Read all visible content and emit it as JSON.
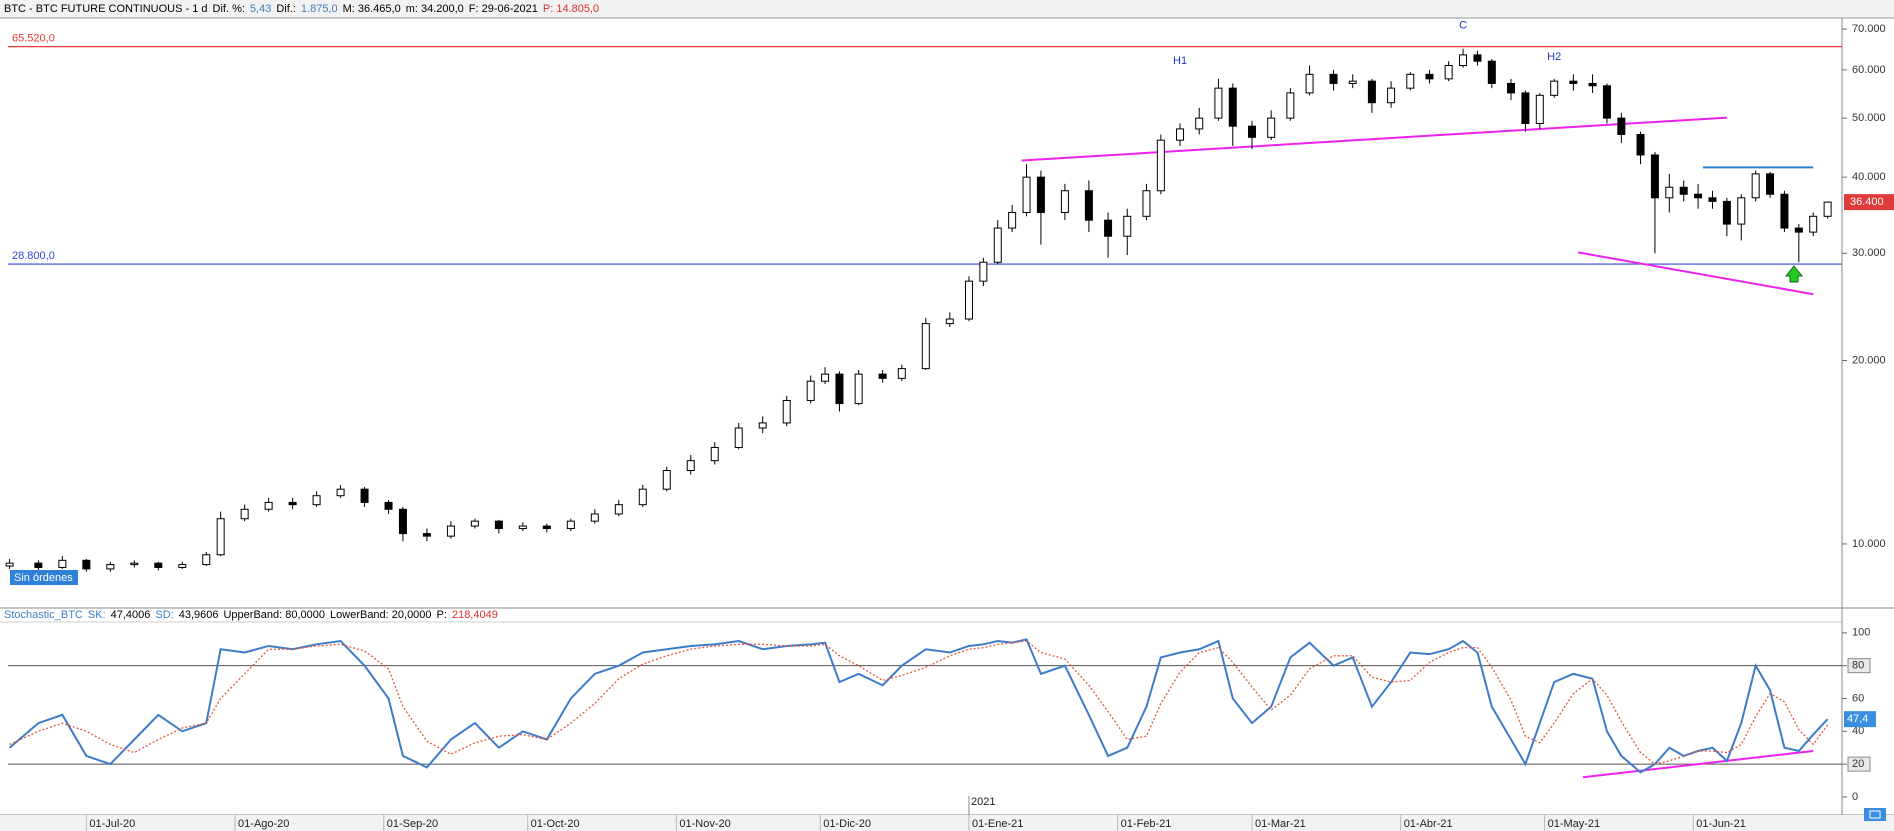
{
  "chart_data": [
    {
      "type": "candlestick",
      "title_parts": [
        {
          "text": "BTC - BTC FUTURE CONTINUOUS - 1 d",
          "color": "#000000"
        },
        {
          "text": "Dif. %:",
          "color": "#000000"
        },
        {
          "text": "5,43",
          "color": "#3a7fc1"
        },
        {
          "text": "Dif.:",
          "color": "#000000"
        },
        {
          "text": "1.875,0",
          "color": "#3a7fc1"
        },
        {
          "text": "M: 36.465,0",
          "color": "#000000"
        },
        {
          "text": "m: 34.200,0",
          "color": "#000000"
        },
        {
          "text": "F: 29-06-2021",
          "color": "#000000"
        },
        {
          "text": "P: 14.805,0",
          "color": "#e03030"
        }
      ],
      "log_scale": true,
      "xlim": [
        -18,
        366
      ],
      "ylim": [
        7850,
        73000
      ],
      "yticks": [
        {
          "value": 10000,
          "label": "10.000"
        },
        {
          "value": 20000,
          "label": "20.000"
        },
        {
          "value": 30000,
          "label": "30.000"
        },
        {
          "value": 40000,
          "label": "40.000"
        },
        {
          "value": 50000,
          "label": "50.000"
        },
        {
          "value": 60000,
          "label": "60.000"
        },
        {
          "value": 70000,
          "label": "70.000"
        }
      ],
      "up_color": "#ffffff",
      "down_color": "#000000",
      "x": [
        -16,
        -10,
        -5,
        0,
        5,
        10,
        15,
        20,
        25,
        28,
        33,
        38,
        43,
        48,
        53,
        58,
        63,
        66,
        71,
        76,
        81,
        86,
        91,
        96,
        101,
        106,
        111,
        116,
        121,
        126,
        131,
        136,
        141,
        146,
        151,
        154,
        157,
        161,
        166,
        170,
        175,
        180,
        184,
        187,
        190,
        193,
        196,
        199,
        204,
        209,
        213,
        217,
        221,
        224,
        228,
        232,
        236,
        239,
        243,
        247,
        251,
        255,
        260,
        264,
        268,
        272,
        276,
        280,
        284,
        287,
        290,
        293,
        297,
        300,
        303,
        306,
        310,
        314,
        317,
        320,
        324,
        327,
        330,
        333,
        336,
        339,
        342,
        345,
        348,
        351,
        354,
        357,
        360,
        363
      ],
      "open": [
        9200,
        9300,
        9150,
        9400,
        9100,
        9250,
        9300,
        9150,
        9250,
        9600,
        11000,
        11400,
        11700,
        11600,
        12000,
        12300,
        11700,
        11400,
        10400,
        10300,
        10700,
        10900,
        10600,
        10700,
        10600,
        10900,
        11200,
        11600,
        12300,
        13200,
        13700,
        14400,
        15500,
        15800,
        17200,
        18500,
        19000,
        17000,
        19000,
        18700,
        19400,
        23000,
        23400,
        27000,
        29000,
        33000,
        35000,
        40000,
        35000,
        38000,
        34000,
        32000,
        34500,
        38000,
        46000,
        48000,
        50000,
        56000,
        48500,
        46500,
        50000,
        55000,
        59000,
        57000,
        57500,
        53000,
        56000,
        59000,
        58000,
        61000,
        63500,
        62000,
        57000,
        55000,
        49000,
        54500,
        57500,
        57000,
        56500,
        50000,
        47000,
        43500,
        37000,
        38500,
        37500,
        37000,
        36500,
        33500,
        37000,
        40500,
        37500,
        33000,
        32500,
        34500
      ],
      "high": [
        9450,
        9400,
        9550,
        9450,
        9350,
        9400,
        9350,
        9350,
        9700,
        11300,
        11600,
        11900,
        11900,
        12200,
        12500,
        12400,
        11800,
        11500,
        10600,
        10900,
        11000,
        10950,
        10850,
        10800,
        11000,
        11400,
        11800,
        12500,
        13400,
        14000,
        14700,
        15800,
        16200,
        17500,
        18900,
        19500,
        19200,
        19300,
        19300,
        19700,
        23500,
        24000,
        27500,
        29500,
        34000,
        36000,
        42000,
        41000,
        39000,
        39500,
        35000,
        35500,
        39000,
        47000,
        49000,
        52000,
        58000,
        57000,
        49500,
        51500,
        56000,
        61000,
        60000,
        59000,
        58000,
        57500,
        59500,
        60000,
        62000,
        65000,
        64500,
        62500,
        58000,
        55500,
        55000,
        58000,
        59000,
        59000,
        57000,
        51000,
        47500,
        44000,
        40500,
        39500,
        39000,
        38000,
        37000,
        37500,
        41000,
        40800,
        38000,
        33500,
        35000,
        36500
      ],
      "low": [
        9100,
        9050,
        9100,
        9000,
        9000,
        9150,
        9050,
        9100,
        9200,
        9550,
        10900,
        11300,
        11400,
        11500,
        11900,
        11500,
        11200,
        10100,
        10100,
        10200,
        10600,
        10400,
        10500,
        10450,
        10500,
        10800,
        11100,
        11500,
        12200,
        13000,
        13500,
        14300,
        15200,
        15600,
        17000,
        18300,
        16500,
        16900,
        18400,
        18500,
        19300,
        22700,
        23200,
        26500,
        28800,
        32500,
        34500,
        31000,
        34000,
        32500,
        29500,
        29800,
        34000,
        37500,
        45000,
        47000,
        49500,
        45000,
        44500,
        46000,
        49500,
        54500,
        55500,
        56000,
        51000,
        52000,
        55500,
        57000,
        57500,
        60500,
        61000,
        56000,
        53500,
        47500,
        48000,
        54000,
        55500,
        55000,
        49000,
        45500,
        42000,
        30000,
        35000,
        36500,
        35500,
        35500,
        32000,
        31500,
        36500,
        37000,
        32500,
        29000,
        32000,
        34200
      ],
      "close": [
        9300,
        9150,
        9400,
        9100,
        9250,
        9300,
        9150,
        9250,
        9600,
        11000,
        11400,
        11700,
        11600,
        12000,
        12300,
        11700,
        11400,
        10400,
        10300,
        10700,
        10900,
        10600,
        10700,
        10600,
        10900,
        11200,
        11600,
        12300,
        13200,
        13700,
        14400,
        15500,
        15800,
        17200,
        18500,
        19000,
        17000,
        19000,
        18700,
        19400,
        23000,
        23400,
        27000,
        29000,
        33000,
        35000,
        40000,
        35000,
        38000,
        34000,
        32000,
        34500,
        38000,
        46000,
        48000,
        50000,
        56000,
        48500,
        46500,
        50000,
        55000,
        59000,
        57000,
        57500,
        53000,
        56000,
        59000,
        58000,
        61000,
        63500,
        62000,
        57000,
        55000,
        49000,
        54500,
        57500,
        57000,
        56500,
        50000,
        47000,
        43500,
        37000,
        38500,
        37500,
        37000,
        36500,
        33500,
        37000,
        40500,
        37500,
        33000,
        32500,
        34500,
        36400
      ],
      "hlines": [
        {
          "value": 65520,
          "label": "65.520,0",
          "color": "#e53935"
        },
        {
          "value": 28800,
          "label": "28.800,0",
          "color": "#3346d6"
        }
      ],
      "trendlines": [
        {
          "x": [
            195,
            342
          ],
          "y": [
            42600,
            50100
          ],
          "color": "#ee22ee"
        },
        {
          "x": [
            311,
            360
          ],
          "y": [
            30100,
            25700
          ],
          "color": "#ee22ee"
        },
        {
          "x": [
            337,
            360
          ],
          "y": [
            41500,
            41500
          ],
          "color": "#2f7fd0"
        }
      ],
      "annotations": [
        {
          "text": "H1",
          "x": 228,
          "y": 62000,
          "color": "#2233cc"
        },
        {
          "text": "C",
          "x": 287,
          "y": 71000,
          "color": "#2233cc"
        },
        {
          "text": "H2",
          "x": 306,
          "y": 63000,
          "color": "#2233cc"
        }
      ],
      "last_price": {
        "value": 36400,
        "label": "36.400",
        "color": "#e03a3a"
      },
      "orders_label": "Sin órdenes"
    },
    {
      "type": "line",
      "header_parts": [
        {
          "text": "Stochastic_BTC",
          "color": "#3a7fc1"
        },
        {
          "text": "SK:",
          "color": "#3a7fc1"
        },
        {
          "text": "47,4006",
          "color": "#000000"
        },
        {
          "text": "SD:",
          "color": "#3a7fc1"
        },
        {
          "text": "43,9606",
          "color": "#000000"
        },
        {
          "text": "UpperBand: 80,0000",
          "color": "#000000"
        },
        {
          "text": "LowerBand: 20,0000",
          "color": "#000000"
        },
        {
          "text": "P:",
          "color": "#000000"
        },
        {
          "text": "218,4049",
          "color": "#e03030"
        }
      ],
      "xlim": [
        -18,
        366
      ],
      "ylim": [
        -11,
        106.6
      ],
      "yticks": [
        0,
        20,
        40,
        60,
        80,
        100
      ],
      "bands": [
        80,
        20
      ],
      "xticks": [
        {
          "value": 0,
          "label": "01-Jul-20"
        },
        {
          "value": 31,
          "label": "01-Ago-20"
        },
        {
          "value": 62,
          "label": "01-Sep-20"
        },
        {
          "value": 92,
          "label": "01-Oct-20"
        },
        {
          "value": 123,
          "label": "01-Nov-20"
        },
        {
          "value": 153,
          "label": "01-Dic-20"
        },
        {
          "value": 184,
          "label": "01-Ene-21"
        },
        {
          "value": 215,
          "label": "01-Feb-21"
        },
        {
          "value": 243,
          "label": "01-Mar-21"
        },
        {
          "value": 274,
          "label": "01-Abr-21"
        },
        {
          "value": 304,
          "label": "01-May-21"
        },
        {
          "value": 335,
          "label": "01-Jun-21"
        }
      ],
      "year_label": {
        "text": "2021",
        "x": 184
      },
      "x": [
        -16,
        -10,
        -5,
        0,
        5,
        10,
        15,
        20,
        25,
        28,
        33,
        38,
        43,
        48,
        53,
        58,
        63,
        66,
        71,
        76,
        81,
        86,
        91,
        96,
        101,
        106,
        111,
        116,
        121,
        126,
        131,
        136,
        141,
        146,
        151,
        154,
        157,
        161,
        166,
        170,
        175,
        180,
        184,
        187,
        190,
        193,
        196,
        199,
        204,
        209,
        213,
        217,
        221,
        224,
        228,
        232,
        236,
        239,
        243,
        247,
        251,
        255,
        260,
        264,
        268,
        272,
        276,
        280,
        284,
        287,
        290,
        293,
        297,
        300,
        303,
        306,
        310,
        314,
        317,
        320,
        324,
        327,
        330,
        333,
        336,
        339,
        342,
        345,
        348,
        351,
        354,
        357,
        360,
        363
      ],
      "series": [
        {
          "name": "SK",
          "color": "#3d7cc9",
          "values": [
            30,
            45,
            50,
            25,
            20,
            35,
            50,
            40,
            45,
            90,
            88,
            92,
            90,
            93,
            95,
            80,
            60,
            25,
            18,
            35,
            45,
            30,
            40,
            35,
            60,
            75,
            80,
            88,
            90,
            92,
            93,
            95,
            90,
            92,
            93,
            94,
            70,
            75,
            68,
            80,
            90,
            88,
            92,
            93,
            95,
            94,
            96,
            75,
            80,
            50,
            25,
            30,
            55,
            85,
            88,
            90,
            95,
            60,
            45,
            55,
            85,
            94,
            80,
            85,
            55,
            70,
            88,
            87,
            90,
            95,
            88,
            55,
            35,
            20,
            45,
            70,
            75,
            72,
            40,
            25,
            15,
            20,
            30,
            25,
            28,
            30,
            22,
            45,
            80,
            65,
            30,
            28,
            38,
            47.4006
          ]
        },
        {
          "name": "SD",
          "color": "#e4573d",
          "values": [
            32,
            40,
            45,
            40,
            32,
            27,
            35,
            42,
            45,
            60,
            75,
            90,
            90,
            92,
            93,
            89,
            78,
            55,
            34,
            26,
            33,
            37,
            38,
            35,
            45,
            57,
            72,
            81,
            86,
            90,
            92,
            93,
            93,
            92,
            92,
            93,
            86,
            80,
            71,
            74,
            79,
            86,
            90,
            91,
            93,
            94,
            95,
            88,
            84,
            68,
            52,
            35,
            37,
            57,
            76,
            88,
            91,
            82,
            67,
            53,
            62,
            78,
            86,
            86,
            73,
            70,
            71,
            82,
            88,
            91,
            91,
            79,
            59,
            37,
            33,
            45,
            63,
            72,
            62,
            46,
            27,
            20,
            22,
            25,
            28,
            28,
            27,
            32,
            49,
            63,
            58,
            41,
            32,
            43.9606
          ]
        }
      ],
      "trendlines": [
        {
          "x": [
            312,
            360
          ],
          "y": [
            12,
            28
          ],
          "color": "#ee22ee"
        }
      ],
      "last_value": {
        "value": 47.4,
        "label": "47,4",
        "color": "#3a8ee0"
      }
    }
  ]
}
